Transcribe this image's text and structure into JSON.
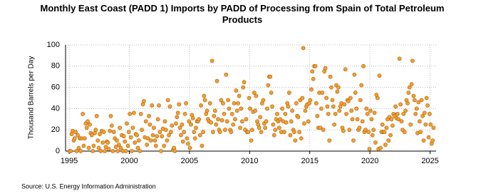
{
  "chart_data": {
    "type": "scatter",
    "title": "Monthly East Coast (PADD 1) Imports by PADD of Processing from Spain of Total Petroleum Products",
    "ylabel": "Thousand Barrels per Day",
    "source": "Source: U.S. Energy Information Administration",
    "color": "#f0a030",
    "edge_color": "#b06010",
    "grid": true,
    "xlim": [
      1994.7,
      2025.5
    ],
    "xticks": [
      1995,
      2000,
      2005,
      2010,
      2015,
      2020,
      2025
    ],
    "ylim": [
      0,
      100
    ],
    "yticks": [
      0,
      20,
      40,
      60,
      80,
      100
    ],
    "x": [
      1995.04,
      1995.13,
      1995.21,
      1995.29,
      1995.38,
      1995.46,
      1995.54,
      1995.63,
      1995.71,
      1995.79,
      1995.88,
      1995.96,
      1996.04,
      1996.13,
      1996.21,
      1996.29,
      1996.38,
      1996.46,
      1996.54,
      1996.63,
      1996.71,
      1996.79,
      1996.88,
      1996.96,
      1997.04,
      1997.13,
      1997.21,
      1997.29,
      1997.38,
      1997.46,
      1997.54,
      1997.63,
      1997.71,
      1997.79,
      1997.88,
      1997.96,
      1998.04,
      1998.13,
      1998.21,
      1998.29,
      1998.38,
      1998.46,
      1998.54,
      1998.63,
      1998.71,
      1998.79,
      1998.88,
      1998.96,
      1999.04,
      1999.13,
      1999.21,
      1999.29,
      1999.38,
      1999.46,
      1999.54,
      1999.63,
      1999.71,
      1999.79,
      1999.88,
      1999.96,
      2000.04,
      2000.13,
      2000.21,
      2000.29,
      2000.38,
      2000.46,
      2000.54,
      2000.63,
      2000.71,
      2000.79,
      2000.88,
      2000.96,
      2001.04,
      2001.13,
      2001.21,
      2001.29,
      2001.38,
      2001.46,
      2001.54,
      2001.63,
      2001.71,
      2001.79,
      2001.88,
      2001.96,
      2002.04,
      2002.13,
      2002.21,
      2002.29,
      2002.38,
      2002.46,
      2002.54,
      2002.63,
      2002.71,
      2002.79,
      2002.88,
      2002.96,
      2003.04,
      2003.13,
      2003.21,
      2003.29,
      2003.38,
      2003.46,
      2003.54,
      2003.63,
      2003.71,
      2003.79,
      2003.88,
      2003.96,
      2004.04,
      2004.13,
      2004.21,
      2004.29,
      2004.38,
      2004.46,
      2004.54,
      2004.63,
      2004.71,
      2004.79,
      2004.88,
      2004.96,
      2005.04,
      2005.13,
      2005.21,
      2005.29,
      2005.38,
      2005.46,
      2005.54,
      2005.63,
      2005.71,
      2005.79,
      2005.88,
      2005.96,
      2006.04,
      2006.13,
      2006.21,
      2006.29,
      2006.38,
      2006.46,
      2006.54,
      2006.63,
      2006.71,
      2006.79,
      2006.88,
      2006.96,
      2007.04,
      2007.13,
      2007.21,
      2007.29,
      2007.38,
      2007.46,
      2007.54,
      2007.63,
      2007.71,
      2007.79,
      2007.88,
      2007.96,
      2008.04,
      2008.13,
      2008.21,
      2008.29,
      2008.38,
      2008.46,
      2008.54,
      2008.63,
      2008.71,
      2008.79,
      2008.88,
      2008.96,
      2009.04,
      2009.13,
      2009.21,
      2009.29,
      2009.38,
      2009.46,
      2009.54,
      2009.63,
      2009.71,
      2009.79,
      2009.88,
      2009.96,
      2010.04,
      2010.13,
      2010.21,
      2010.29,
      2010.38,
      2010.46,
      2010.54,
      2010.63,
      2010.71,
      2010.79,
      2010.88,
      2010.96,
      2011.04,
      2011.13,
      2011.21,
      2011.29,
      2011.38,
      2011.46,
      2011.54,
      2011.63,
      2011.71,
      2011.79,
      2011.88,
      2011.96,
      2012.04,
      2012.13,
      2012.21,
      2012.29,
      2012.38,
      2012.46,
      2012.54,
      2012.63,
      2012.71,
      2012.79,
      2012.88,
      2012.96,
      2013.04,
      2013.13,
      2013.21,
      2013.29,
      2013.38,
      2013.46,
      2013.54,
      2013.63,
      2013.71,
      2013.79,
      2013.88,
      2013.96,
      2014.04,
      2014.13,
      2014.21,
      2014.29,
      2014.38,
      2014.46,
      2014.54,
      2014.63,
      2014.71,
      2014.79,
      2014.88,
      2014.96,
      2015.04,
      2015.13,
      2015.21,
      2015.29,
      2015.38,
      2015.46,
      2015.54,
      2015.63,
      2015.71,
      2015.79,
      2015.88,
      2015.96,
      2016.04,
      2016.13,
      2016.21,
      2016.29,
      2016.38,
      2016.46,
      2016.54,
      2016.63,
      2016.71,
      2016.79,
      2016.88,
      2016.96,
      2017.04,
      2017.13,
      2017.21,
      2017.29,
      2017.38,
      2017.46,
      2017.54,
      2017.63,
      2017.71,
      2017.79,
      2017.88,
      2017.96,
      2018.04,
      2018.13,
      2018.21,
      2018.29,
      2018.38,
      2018.46,
      2018.54,
      2018.63,
      2018.71,
      2018.79,
      2018.88,
      2018.96,
      2019.04,
      2019.13,
      2019.21,
      2019.29,
      2019.38,
      2019.46,
      2019.54,
      2019.63,
      2019.71,
      2019.79,
      2019.88,
      2019.96,
      2020.04,
      2020.13,
      2020.21,
      2020.29,
      2020.38,
      2020.46,
      2020.54,
      2020.63,
      2020.71,
      2020.79,
      2020.88,
      2020.96,
      2021.04,
      2021.13,
      2021.21,
      2021.29,
      2021.38,
      2021.46,
      2021.54,
      2021.63,
      2021.71,
      2021.79,
      2021.88,
      2021.96,
      2022.04,
      2022.13,
      2022.21,
      2022.29,
      2022.38,
      2022.46,
      2022.54,
      2022.63,
      2022.71,
      2022.79,
      2022.88,
      2022.96,
      2023.04,
      2023.13,
      2023.21,
      2023.29,
      2023.38,
      2023.46,
      2023.54,
      2023.63,
      2023.71,
      2023.79,
      2023.88,
      2023.96,
      2024.04,
      2024.13,
      2024.21,
      2024.29,
      2024.38,
      2024.46,
      2024.54,
      2024.63,
      2024.71,
      2024.79,
      2024.88,
      2024.96,
      2025.04,
      2025.13,
      2025.21,
      2025.29
    ],
    "values": [
      0,
      0,
      16,
      19,
      10,
      12,
      18,
      0,
      15,
      3,
      12,
      0,
      12,
      35,
      5,
      12,
      26,
      22,
      28,
      3,
      25,
      17,
      15,
      0,
      5,
      17,
      20,
      33,
      10,
      3,
      16,
      0,
      19,
      8,
      18,
      0,
      4,
      9,
      8,
      2,
      19,
      33,
      24,
      0,
      18,
      12,
      4,
      10,
      0,
      6,
      22,
      3,
      15,
      0,
      14,
      9,
      0,
      26,
      5,
      18,
      35,
      13,
      0,
      22,
      36,
      8,
      16,
      15,
      3,
      10,
      0,
      35,
      20,
      44,
      47,
      13,
      28,
      6,
      12,
      33,
      25,
      10,
      43,
      15,
      22,
      10,
      5,
      14,
      30,
      43,
      18,
      0,
      14,
      21,
      5,
      28,
      20,
      10,
      48,
      15,
      42,
      18,
      24,
      1,
      3,
      0,
      26,
      32,
      36,
      44,
      22,
      15,
      25,
      9,
      18,
      35,
      45,
      12,
      7,
      28,
      3,
      25,
      34,
      31,
      18,
      12,
      22,
      28,
      28,
      30,
      15,
      43,
      5,
      18,
      52,
      48,
      35,
      38,
      30,
      28,
      45,
      27,
      85,
      18,
      33,
      38,
      25,
      66,
      30,
      20,
      18,
      48,
      29,
      45,
      35,
      20,
      72,
      28,
      48,
      40,
      20,
      18,
      35,
      25,
      45,
      30,
      57,
      38,
      45,
      52,
      22,
      40,
      28,
      60,
      65,
      20,
      30,
      18,
      18,
      50,
      40,
      10,
      20,
      37,
      55,
      38,
      52,
      28,
      25,
      22,
      32,
      18,
      45,
      48,
      26,
      22,
      28,
      40,
      62,
      70,
      70,
      55,
      42,
      25,
      15,
      20,
      30,
      35,
      28,
      22,
      30,
      18,
      40,
      28,
      18,
      35,
      27,
      45,
      42,
      55,
      15,
      28,
      38,
      20,
      18,
      10,
      45,
      33,
      32,
      18,
      48,
      12,
      50,
      97,
      26,
      38,
      42,
      44,
      28,
      45,
      48,
      58,
      75,
      68,
      80,
      80,
      45,
      33,
      22,
      55,
      22,
      40,
      55,
      20,
      75,
      78,
      50,
      42,
      35,
      10,
      70,
      60,
      48,
      42,
      25,
      35,
      62,
      56,
      60,
      38,
      42,
      45,
      22,
      19,
      44,
      77,
      35,
      48,
      47,
      20,
      50,
      38,
      30,
      10,
      72,
      55,
      40,
      30,
      20,
      22,
      48,
      62,
      28,
      80,
      18,
      20,
      40,
      35,
      18,
      2,
      38,
      30,
      15,
      20,
      36,
      8,
      53,
      50,
      2,
      71,
      3,
      18,
      25,
      18,
      18,
      6,
      22,
      30,
      10,
      32,
      15,
      30,
      24,
      35,
      33,
      42,
      31,
      35,
      30,
      87,
      44,
      28,
      20,
      35,
      18,
      38,
      48,
      45,
      55,
      60,
      25,
      63,
      85,
      52,
      48,
      35,
      40,
      17,
      46,
      28,
      18,
      48,
      33,
      10,
      36,
      25,
      50,
      43,
      13,
      35,
      25,
      7,
      10,
      22
    ]
  }
}
